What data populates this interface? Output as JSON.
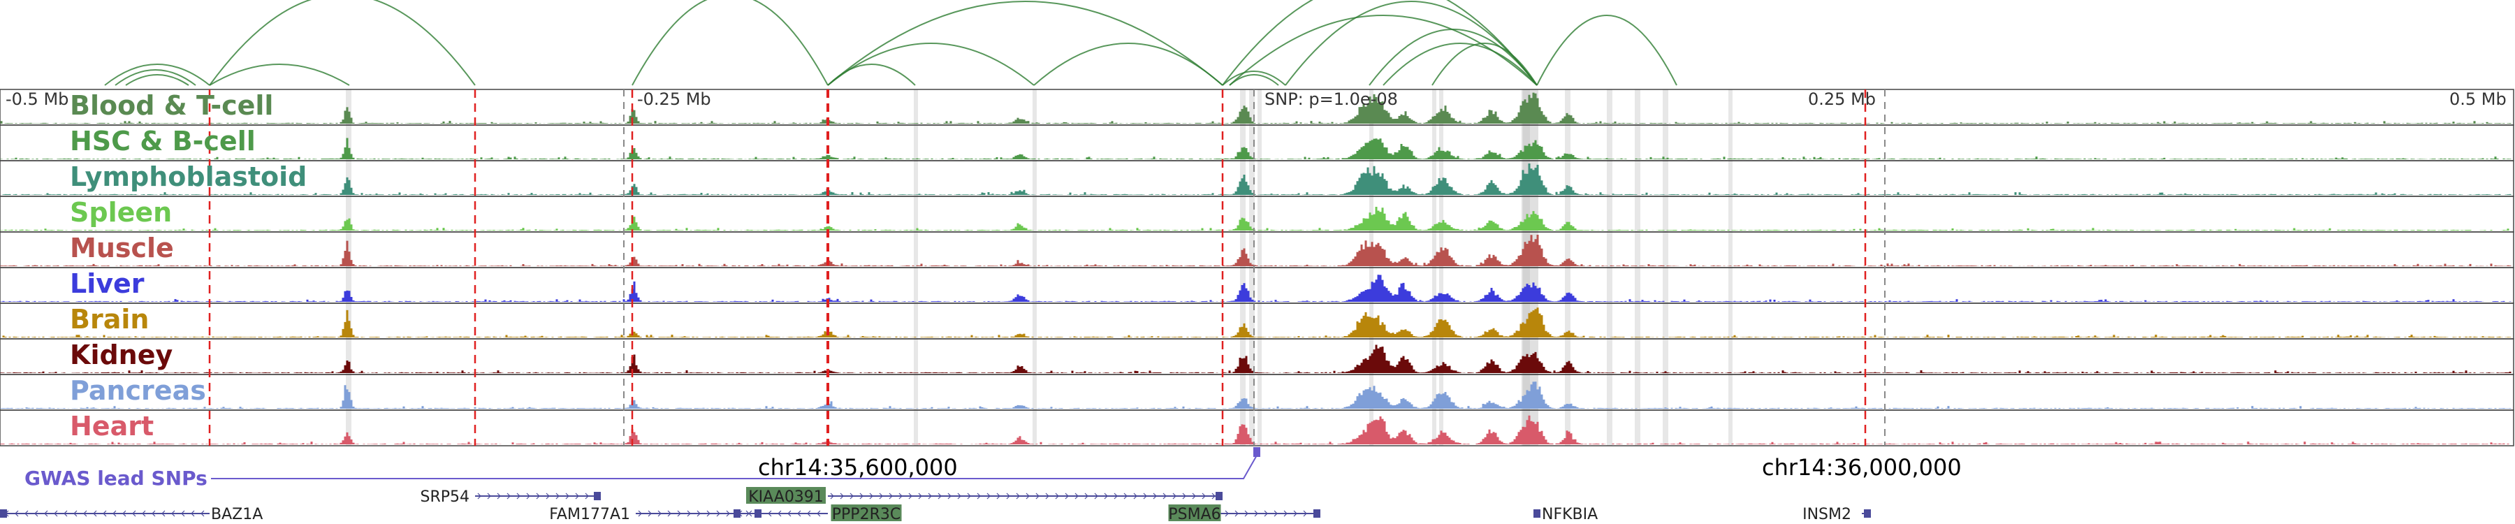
{
  "axis": {
    "left_label": "-0.5 Mb",
    "mid_left_label": "-0.25 Mb",
    "snp_label": "SNP: p=1.0e-08",
    "mid_right_label": "0.25 Mb",
    "right_label": "0.5 Mb"
  },
  "tracks": [
    {
      "name": "Blood & T-cell",
      "color": "#5a8a52"
    },
    {
      "name": "HSC & B-cell",
      "color": "#4e9a4a"
    },
    {
      "name": "Lymphoblastoid",
      "color": "#3f8f7a"
    },
    {
      "name": "Spleen",
      "color": "#6cc850"
    },
    {
      "name": "Muscle",
      "color": "#b8524e"
    },
    {
      "name": "Liver",
      "color": "#3c3cdc"
    },
    {
      "name": "Brain",
      "color": "#b8860b"
    },
    {
      "name": "Kidney",
      "color": "#6b0a0a"
    },
    {
      "name": "Pancreas",
      "color": "#7f9fd8"
    },
    {
      "name": "Heart",
      "color": "#d85a6a"
    }
  ],
  "coordinates": {
    "left": "chr14:35,600,000",
    "right": "chr14:36,000,000"
  },
  "gwas_label": "GWAS lead SNPs",
  "genes": [
    "BAZ1A",
    "SRP54",
    "FAM177A1",
    "KIAA0391",
    "PPP2R3C",
    "PSMA6",
    "NFKBIA",
    "INSM2"
  ],
  "colors": {
    "red_dash": "#e02020",
    "gray_band": "#bbbbbb",
    "arc": "#2e7d32",
    "gwas": "#6a5acd",
    "gene": "#4a4a9a",
    "highlight_gene_bg": "#5a8a5a"
  }
}
